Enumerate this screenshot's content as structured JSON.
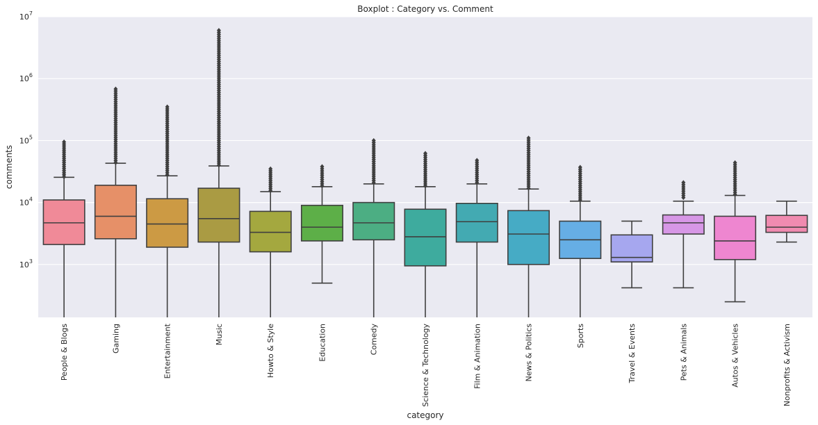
{
  "chart_data": {
    "type": "boxplot",
    "title": "Boxplot : Category vs. Comment",
    "xlabel": "category",
    "ylabel": "comments",
    "yscale": "log",
    "ylim": [
      140,
      10000000
    ],
    "yticks": [
      {
        "value": 1000,
        "base": "10",
        "exp": "3"
      },
      {
        "value": 10000,
        "base": "10",
        "exp": "4"
      },
      {
        "value": 100000,
        "base": "10",
        "exp": "5"
      },
      {
        "value": 1000000,
        "base": "10",
        "exp": "6"
      },
      {
        "value": 10000000,
        "base": "10",
        "exp": "7"
      }
    ],
    "grid": true,
    "categories": [
      "People & Blogs",
      "Gaming",
      "Entertainment",
      "Music",
      "Howto & Style",
      "Education",
      "Comedy",
      "Science & Technology",
      "Film & Animation",
      "News & Politics",
      "Sports",
      "Travel & Events",
      "Pets & Animals",
      "Autos & Vehicles",
      "Nonprofits & Activism"
    ],
    "boxes": [
      {
        "whisker_low": 140,
        "q1": 2100,
        "median": 4700,
        "q3": 11000,
        "whisker_high": 25500,
        "outlier_min": 26000,
        "outlier_max": 95000
      },
      {
        "whisker_low": 140,
        "q1": 2600,
        "median": 6000,
        "q3": 19000,
        "whisker_high": 43000,
        "outlier_min": 44000,
        "outlier_max": 680000
      },
      {
        "whisker_low": 140,
        "q1": 1900,
        "median": 4500,
        "q3": 11500,
        "whisker_high": 27000,
        "outlier_min": 28000,
        "outlier_max": 350000
      },
      {
        "whisker_low": 140,
        "q1": 2300,
        "median": 5500,
        "q3": 17000,
        "whisker_high": 39000,
        "outlier_min": 40000,
        "outlier_max": 6000000
      },
      {
        "whisker_low": 140,
        "q1": 1600,
        "median": 3300,
        "q3": 7200,
        "whisker_high": 15000,
        "outlier_min": 15500,
        "outlier_max": 35000
      },
      {
        "whisker_low": 500,
        "q1": 2400,
        "median": 4000,
        "q3": 9000,
        "whisker_high": 18000,
        "outlier_min": 18500,
        "outlier_max": 38000
      },
      {
        "whisker_low": 140,
        "q1": 2500,
        "median": 4700,
        "q3": 10000,
        "whisker_high": 20000,
        "outlier_min": 21000,
        "outlier_max": 100000
      },
      {
        "whisker_low": 140,
        "q1": 950,
        "median": 2800,
        "q3": 7800,
        "whisker_high": 18000,
        "outlier_min": 18500,
        "outlier_max": 62000
      },
      {
        "whisker_low": 140,
        "q1": 2300,
        "median": 4900,
        "q3": 9700,
        "whisker_high": 20000,
        "outlier_min": 21000,
        "outlier_max": 48000
      },
      {
        "whisker_low": 140,
        "q1": 1000,
        "median": 3100,
        "q3": 7400,
        "whisker_high": 16500,
        "outlier_min": 17000,
        "outlier_max": 110000
      },
      {
        "whisker_low": 140,
        "q1": 1250,
        "median": 2500,
        "q3": 5000,
        "whisker_high": 10500,
        "outlier_min": 11000,
        "outlier_max": 37000
      },
      {
        "whisker_low": 420,
        "q1": 1100,
        "median": 1300,
        "q3": 3000,
        "whisker_high": 5000,
        "outlier_min": null,
        "outlier_max": null
      },
      {
        "whisker_low": 420,
        "q1": 3100,
        "median": 4700,
        "q3": 6300,
        "whisker_high": 10500,
        "outlier_min": 12000,
        "outlier_max": 21000
      },
      {
        "whisker_low": 250,
        "q1": 1200,
        "median": 2400,
        "q3": 6000,
        "whisker_high": 13000,
        "outlier_min": 13500,
        "outlier_max": 44000
      },
      {
        "whisker_low": 2300,
        "q1": 3300,
        "median": 4000,
        "q3": 6200,
        "whisker_high": 10500,
        "outlier_min": null,
        "outlier_max": null
      }
    ],
    "colors": [
      "#f08a98",
      "#e69068",
      "#cc9a44",
      "#aa9b43",
      "#a4a83f",
      "#5daf48",
      "#4cae83",
      "#3eab9e",
      "#43aab2",
      "#46abc5",
      "#66aee5",
      "#a6a7ef",
      "#d797e6",
      "#ee86d0",
      "#f08bb0"
    ]
  }
}
